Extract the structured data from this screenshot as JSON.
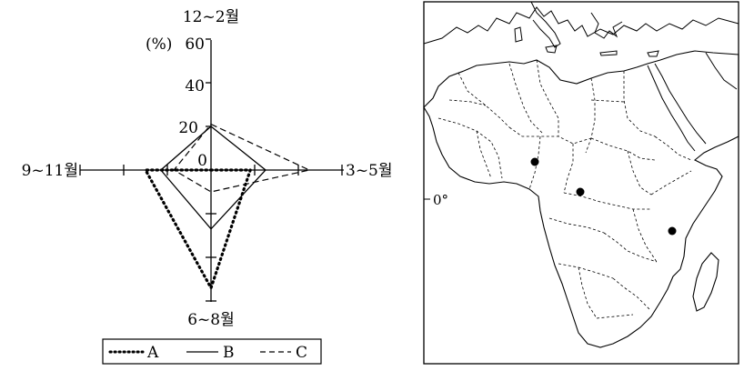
{
  "chart_data": {
    "type": "radar",
    "axis_labels": {
      "top": "12~2월",
      "right": "3~5월",
      "bottom": "6~8월",
      "left": "9~11월"
    },
    "unit": "(%)",
    "ticks": [
      "60",
      "40",
      "20",
      "0"
    ],
    "rmax": 60,
    "series": [
      {
        "name": "A",
        "style": "dotted",
        "values": {
          "top": 0,
          "right": 18,
          "bottom": 54,
          "left": 30
        }
      },
      {
        "name": "B",
        "style": "solid",
        "values": {
          "top": 20,
          "right": 25,
          "bottom": 27,
          "left": 23
        }
      },
      {
        "name": "C",
        "style": "dashed",
        "values": {
          "top": 21,
          "right": 45,
          "bottom": 10,
          "left": 17
        }
      }
    ]
  },
  "map": {
    "equator_label": "0°",
    "points": [
      {
        "name": "west-africa-point"
      },
      {
        "name": "central-africa-point"
      },
      {
        "name": "east-africa-point"
      }
    ]
  }
}
